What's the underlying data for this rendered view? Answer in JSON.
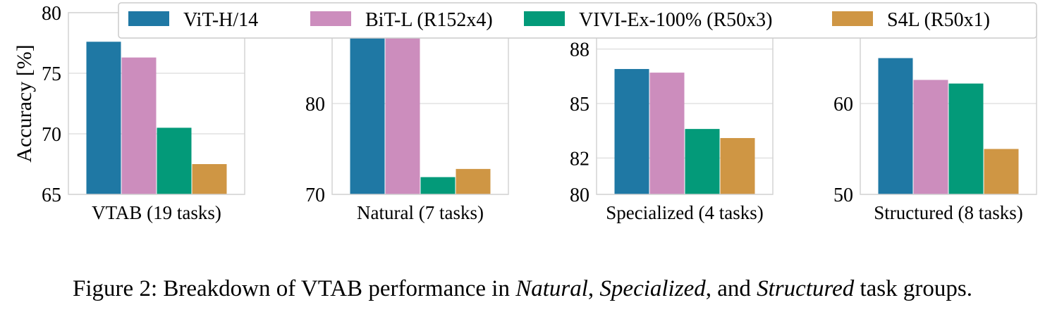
{
  "legend": [
    {
      "name": "ViT-H/14",
      "color": "#1f78a4"
    },
    {
      "name": "BiT-L (R152x4)",
      "color": "#cc8dbd"
    },
    {
      "name": "VIVI-Ex-100% (R50x3)",
      "color": "#039a79"
    },
    {
      "name": "S4L (R50x1)",
      "color": "#cf9644"
    }
  ],
  "chart_data": [
    {
      "type": "bar",
      "xlabel": "VTAB (19 tasks)",
      "ylabel": "Accuracy [%]",
      "ylim": [
        65,
        80
      ],
      "yticks": [
        65,
        70,
        75,
        80
      ],
      "series": [
        {
          "name": "ViT-H/14",
          "values": [
            77.6
          ]
        },
        {
          "name": "BiT-L (R152x4)",
          "values": [
            76.3
          ]
        },
        {
          "name": "VIVI-Ex-100% (R50x3)",
          "values": [
            70.5
          ]
        },
        {
          "name": "S4L (R50x1)",
          "values": [
            67.5
          ]
        }
      ]
    },
    {
      "type": "bar",
      "xlabel": "Natural (7 tasks)",
      "ylabel": "",
      "ylim": [
        70,
        90
      ],
      "yticks": [
        70,
        80
      ],
      "series": [
        {
          "name": "ViT-H/14",
          "values": [
            88.5
          ]
        },
        {
          "name": "BiT-L (R152x4)",
          "values": [
            87.4
          ]
        },
        {
          "name": "VIVI-Ex-100% (R50x3)",
          "values": [
            71.9
          ]
        },
        {
          "name": "S4L (R50x1)",
          "values": [
            72.8
          ]
        }
      ]
    },
    {
      "type": "bar",
      "xlabel": "Specialized (4 tasks)",
      "ylabel": "",
      "ylim": [
        80,
        90
      ],
      "yticks": [
        80,
        82,
        85,
        88
      ],
      "ytick_labels": [
        "80",
        "82",
        "85",
        "88"
      ],
      "series": [
        {
          "name": "ViT-H/14",
          "values": [
            86.9
          ]
        },
        {
          "name": "BiT-L (R152x4)",
          "values": [
            86.7
          ]
        },
        {
          "name": "VIVI-Ex-100% (R50x3)",
          "values": [
            83.6
          ]
        },
        {
          "name": "S4L (R50x1)",
          "values": [
            83.1
          ]
        }
      ]
    },
    {
      "type": "bar",
      "xlabel": "Structured (8 tasks)",
      "ylabel": "",
      "ylim": [
        50,
        70
      ],
      "yticks": [
        50,
        60
      ],
      "series": [
        {
          "name": "ViT-H/14",
          "values": [
            65.0
          ]
        },
        {
          "name": "BiT-L (R152x4)",
          "values": [
            62.6
          ]
        },
        {
          "name": "VIVI-Ex-100% (R50x3)",
          "values": [
            62.2
          ]
        },
        {
          "name": "S4L (R50x1)",
          "values": [
            55.0
          ]
        }
      ]
    }
  ],
  "caption": {
    "prefix": "Figure 2: Breakdown of VTAB performance in ",
    "it1": "Natural",
    "sep1": ", ",
    "it2": "Specialized",
    "sep2": ", and ",
    "it3": "Structured",
    "suffix": " task groups."
  }
}
